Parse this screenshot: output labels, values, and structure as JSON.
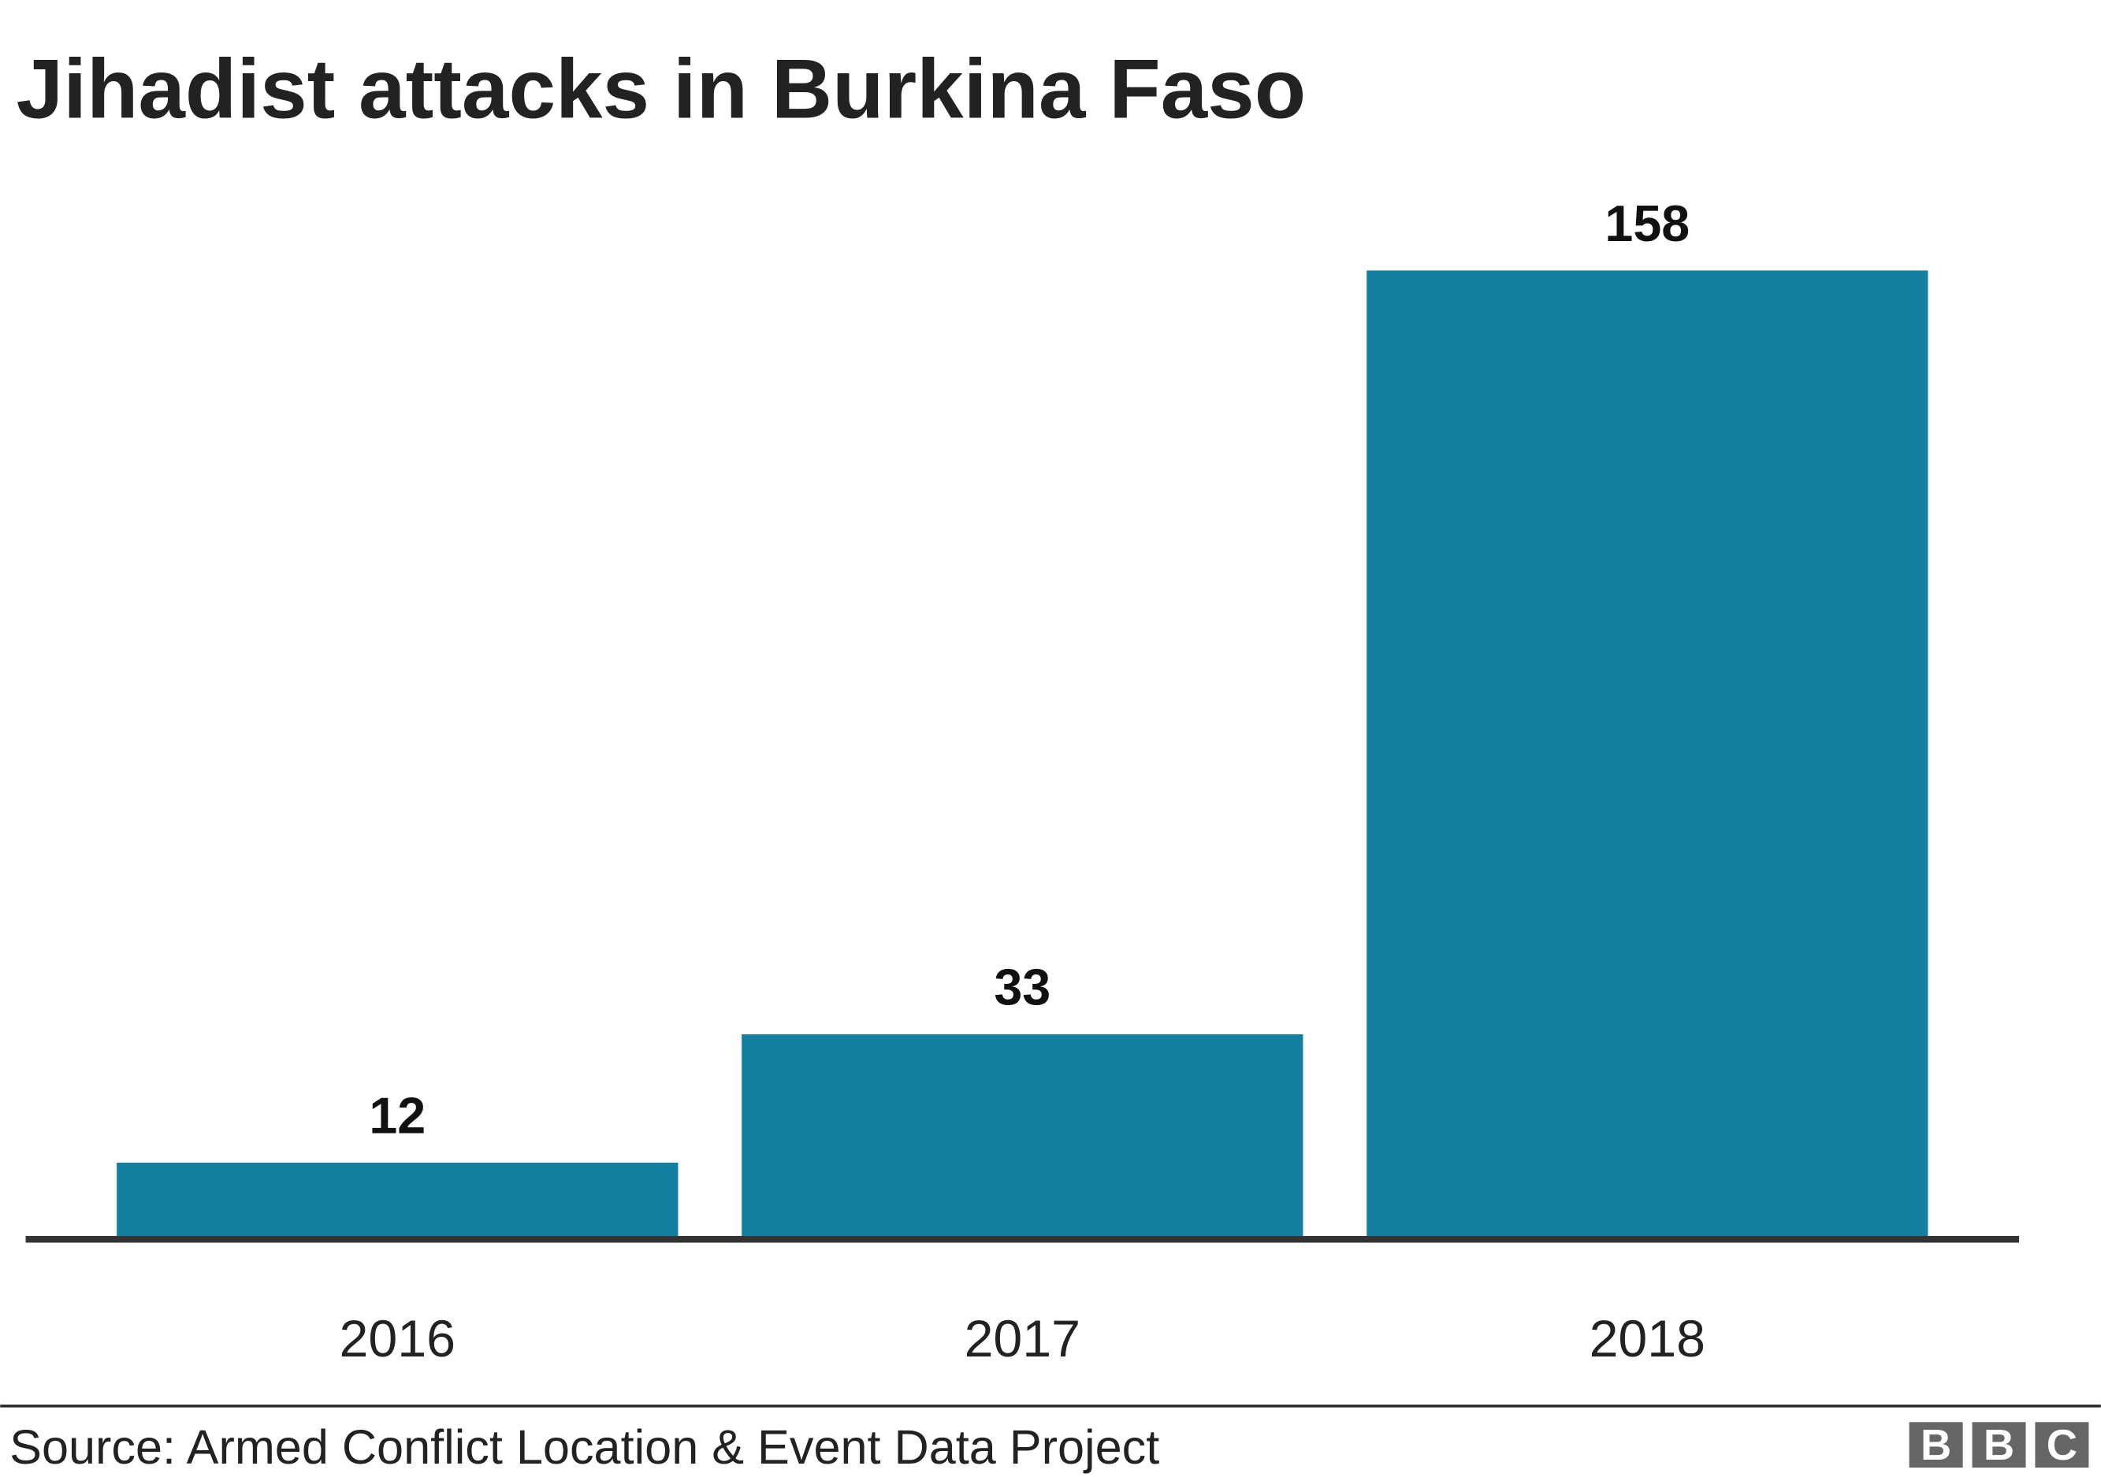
{
  "chart_data": {
    "type": "bar",
    "title": "Jihadist attacks in Burkina Faso",
    "categories": [
      "2016",
      "2017",
      "2018"
    ],
    "values": [
      12,
      33,
      158
    ],
    "data_labels": [
      "12",
      "33",
      "158"
    ],
    "xlabel": "",
    "ylabel": "",
    "ylim": [
      0,
      158
    ],
    "grid": false,
    "bar_color": "#1380A1",
    "axis_color": "#333333"
  },
  "footer": {
    "source": "Source: Armed Conflict Location & Event Data Project",
    "logo": "BBC"
  }
}
